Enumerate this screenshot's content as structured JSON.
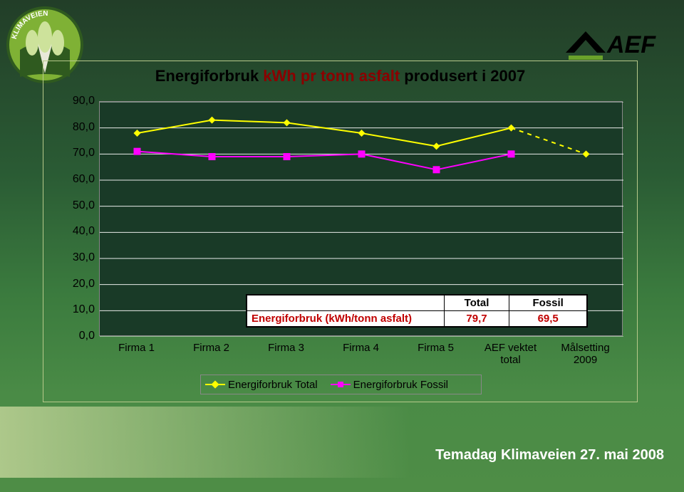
{
  "slide": {
    "title_plain_prefix": "Energiforbruk ",
    "title_accent": "kWh pr tonn asfalt",
    "title_plain_suffix": " produsert i 2007",
    "footer": "Temadag Klimaveien 27. mai 2008"
  },
  "logos": {
    "left_name": "klimaveien-logo",
    "right_name": "aef-logo",
    "right_text": "AEF"
  },
  "chart": {
    "type": "line",
    "plot_bg": "#193a27",
    "grid_color": "#ffffff",
    "ylim_min": 0,
    "ylim_max": 90,
    "ytick_step": 10,
    "y_ticks": [
      {
        "v": 0,
        "label": "0,0"
      },
      {
        "v": 10,
        "label": "10,0"
      },
      {
        "v": 20,
        "label": "20,0"
      },
      {
        "v": 30,
        "label": "30,0"
      },
      {
        "v": 40,
        "label": "40,0"
      },
      {
        "v": 50,
        "label": "50,0"
      },
      {
        "v": 60,
        "label": "60,0"
      },
      {
        "v": 70,
        "label": "70,0"
      },
      {
        "v": 80,
        "label": "80,0"
      },
      {
        "v": 90,
        "label": "90,0"
      }
    ],
    "categories": [
      "Firma 1",
      "Firma 2",
      "Firma 3",
      "Firma 4",
      "Firma 5",
      "AEF vektet total",
      "Målsetting 2009"
    ],
    "series": [
      {
        "name": "Energiforbruk Total",
        "color": "#ffff00",
        "marker": "diamond",
        "marker_size": 10,
        "line_width": 2,
        "dash_from_index": 5,
        "values": [
          78,
          83,
          82,
          78,
          73,
          80,
          70
        ]
      },
      {
        "name": "Energiforbruk Fossil",
        "color": "#ff00ff",
        "marker": "square",
        "marker_size": 10,
        "line_width": 2,
        "dash_from_index": null,
        "values": [
          71,
          69,
          69,
          70,
          64,
          70,
          null
        ]
      }
    ]
  },
  "table": {
    "headers": [
      "",
      "Total",
      "Fossil"
    ],
    "row_label": "Energiforbruk (kWh/tonn asfalt)",
    "values": [
      "79,7",
      "69,5"
    ]
  },
  "legend": {
    "items": [
      {
        "label": "Energiforbruk Total",
        "color": "#ffff00",
        "marker": "diamond"
      },
      {
        "label": "Energiforbruk Fossil",
        "color": "#ff00ff",
        "marker": "square"
      }
    ]
  },
  "colors": {
    "title_text": "#000000",
    "accent_text": "#8b0000",
    "axis_label": "#000000",
    "panel_border": "#b7c98a"
  }
}
